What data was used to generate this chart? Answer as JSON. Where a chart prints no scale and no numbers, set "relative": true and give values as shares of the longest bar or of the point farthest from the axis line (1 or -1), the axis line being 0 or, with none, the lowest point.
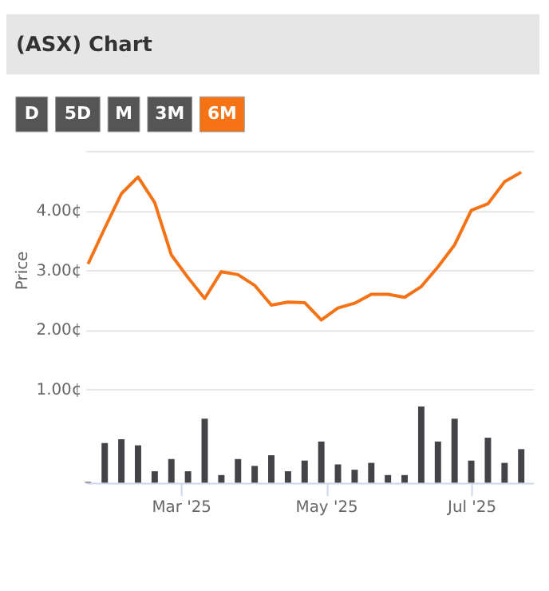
{
  "chart_data": [
    {
      "type": "other",
      "title": "(ASX) Chart",
      "annotations": [
        "D",
        "5D",
        "M",
        "3M",
        "6M"
      ],
      "colors": [
        "#555555",
        "#555555",
        "#555555",
        "#555555",
        "#f57215"
      ]
    },
    {
      "type": "line",
      "ylabel": "Price",
      "x": [
        "2025-01-21",
        "2025-01-28",
        "2025-02-04",
        "2025-02-11",
        "2025-02-18",
        "2025-02-25",
        "2025-03-04",
        "2025-03-11",
        "2025-03-18",
        "2025-03-25",
        "2025-04-01",
        "2025-04-08",
        "2025-04-15",
        "2025-04-22",
        "2025-04-29",
        "2025-05-06",
        "2025-05-13",
        "2025-05-20",
        "2025-05-27",
        "2025-06-03",
        "2025-06-10",
        "2025-06-17",
        "2025-06-24",
        "2025-07-01",
        "2025-07-08",
        "2025-07-15",
        "2025-07-22"
      ],
      "series": [
        {
          "color": "#f57215",
          "values": [
            3.1,
            3.7,
            4.28,
            4.56,
            4.13,
            3.25,
            2.87,
            2.52,
            2.97,
            2.92,
            2.74,
            2.41,
            2.46,
            2.45,
            2.16,
            2.36,
            2.44,
            2.59,
            2.59,
            2.54,
            2.72,
            3.05,
            3.42,
            4.0,
            4.11,
            4.48,
            4.64
          ]
        }
      ],
      "xlim": [
        "2025-01-20",
        "2025-07-27"
      ],
      "ylim": [
        1,
        5
      ],
      "yticks": [
        {
          "value": 1,
          "label": "1.00¢"
        },
        {
          "value": 2,
          "label": "2.00¢"
        },
        {
          "value": 3,
          "label": "3.00¢"
        },
        {
          "value": 4,
          "label": "4.00¢"
        },
        {
          "value": 5,
          "label": null
        }
      ],
      "grid": "y",
      "tick_labels": "y"
    },
    {
      "type": "bar",
      "relative": true,
      "x": [
        "2025-01-21",
        "2025-01-28",
        "2025-02-04",
        "2025-02-11",
        "2025-02-18",
        "2025-02-25",
        "2025-03-04",
        "2025-03-11",
        "2025-03-18",
        "2025-03-25",
        "2025-04-01",
        "2025-04-08",
        "2025-04-15",
        "2025-04-22",
        "2025-04-29",
        "2025-05-06",
        "2025-05-13",
        "2025-05-20",
        "2025-05-27",
        "2025-06-03",
        "2025-06-10",
        "2025-06-17",
        "2025-06-24",
        "2025-07-01",
        "2025-07-08",
        "2025-07-15",
        "2025-07-22"
      ],
      "series": [
        {
          "color": "#434348",
          "values": [
            0.01,
            0.52,
            0.57,
            0.49,
            0.15,
            0.31,
            0.15,
            0.84,
            0.1,
            0.31,
            0.22,
            0.36,
            0.15,
            0.29,
            0.54,
            0.24,
            0.17,
            0.26,
            0.1,
            0.1,
            1.0,
            0.54,
            0.84,
            0.29,
            0.59,
            0.26,
            0.44
          ]
        }
      ],
      "xlim": [
        "2025-01-20",
        "2025-07-27"
      ],
      "xticks": [
        {
          "value": "2025-03-01",
          "label": "Mar '25"
        },
        {
          "value": "2025-05-01",
          "label": "May '25"
        },
        {
          "value": "2025-07-01",
          "label": "Jul '25"
        }
      ],
      "tick_labels": "x"
    }
  ]
}
